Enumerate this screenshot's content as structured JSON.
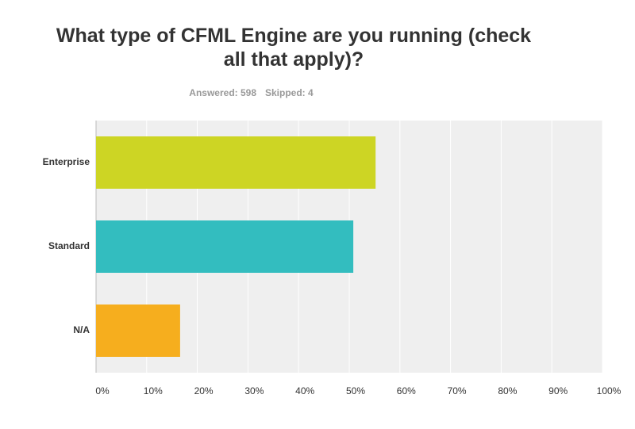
{
  "chart_data": {
    "type": "hbar",
    "title": "What type of CFML Engine are you running (check all that apply)?",
    "answered": "Answered: 598",
    "skipped": "Skipped: 4",
    "categories": [
      "Enterprise",
      "Standard",
      "N/A"
    ],
    "values": [
      55.2,
      50.8,
      16.6
    ],
    "colors": [
      "#cdd524",
      "#33bdbf",
      "#f6ae1e"
    ],
    "xlim": [
      0,
      100
    ],
    "xticks": [
      {
        "value": 0,
        "label": "0%"
      },
      {
        "value": 10,
        "label": "10%"
      },
      {
        "value": 20,
        "label": "20%"
      },
      {
        "value": 30,
        "label": "30%"
      },
      {
        "value": 40,
        "label": "40%"
      },
      {
        "value": 50,
        "label": "50%"
      },
      {
        "value": 60,
        "label": "60%"
      },
      {
        "value": 70,
        "label": "70%"
      },
      {
        "value": 80,
        "label": "80%"
      },
      {
        "value": 90,
        "label": "90%"
      },
      {
        "value": 100,
        "label": "100%"
      }
    ],
    "grid": true
  }
}
